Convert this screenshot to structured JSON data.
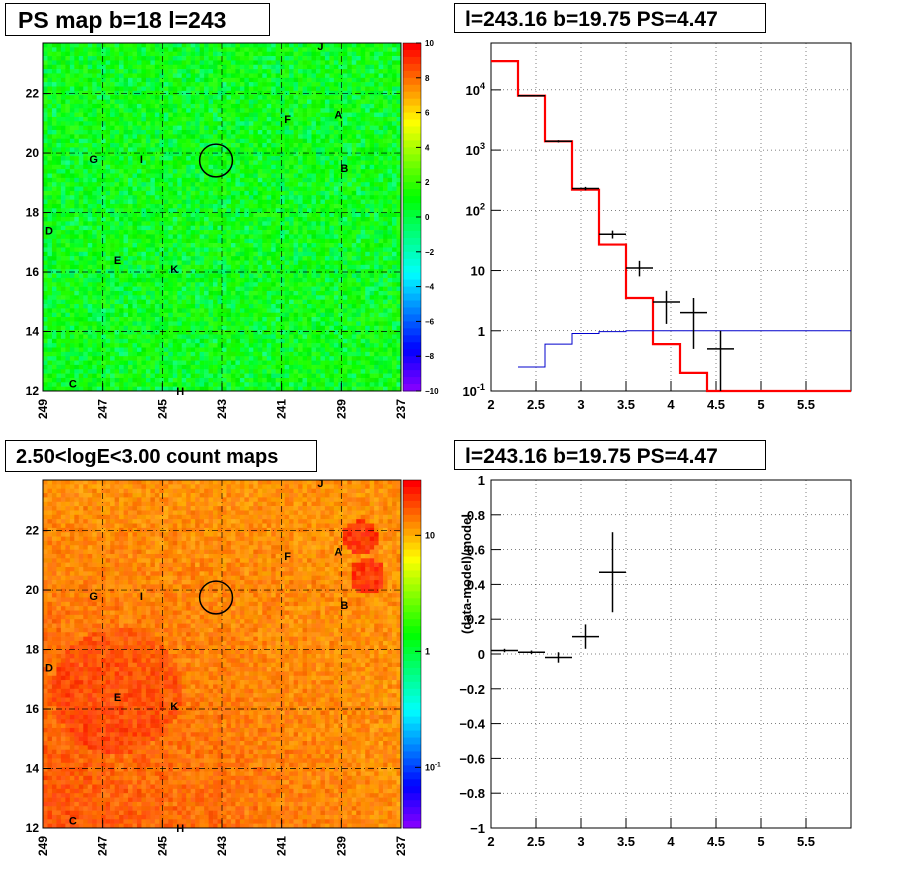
{
  "panels": {
    "ps_map_title": "PS map b=18 l=243",
    "spectrum_title": "l=243.16 b=19.75 PS=4.47",
    "count_map_title": "2.50<logE<3.00 count maps",
    "residual_title": "l=243.16 b=19.75 PS=4.47"
  },
  "colors": {
    "data": "#000000",
    "model_red": "#ff0000",
    "model_blue": "#0000cc",
    "map_green": "#22ff00"
  },
  "chart_data": [
    {
      "type": "heatmap",
      "name": "ps_map",
      "title": "PS map b=18 l=243",
      "x_ticks": [
        "249",
        "247",
        "245",
        "243",
        "241",
        "239",
        "237"
      ],
      "xlim": [
        249,
        237
      ],
      "y_ticks": [
        "12",
        "14",
        "16",
        "18",
        "20",
        "22"
      ],
      "ylim": [
        12,
        23.7
      ],
      "colorbar": {
        "scale": "linear",
        "range": [
          -10,
          10
        ],
        "ticks": [
          "10",
          "8",
          "6",
          "4",
          "2",
          "0",
          "−2",
          "−4",
          "−6",
          "−8",
          "−10"
        ]
      },
      "dominant_value": 0.5,
      "source_labels": [
        {
          "text": "A",
          "l": 239.1,
          "b": 21.3
        },
        {
          "text": "B",
          "l": 238.9,
          "b": 19.5
        },
        {
          "text": "C",
          "l": 248.0,
          "b": 12.25
        },
        {
          "text": "D",
          "l": 248.8,
          "b": 17.4
        },
        {
          "text": "E",
          "l": 246.5,
          "b": 16.4
        },
        {
          "text": "F",
          "l": 240.8,
          "b": 21.15
        },
        {
          "text": "G",
          "l": 247.3,
          "b": 19.8
        },
        {
          "text": "H",
          "l": 244.4,
          "b": 12.0
        },
        {
          "text": "I",
          "l": 245.7,
          "b": 19.8
        },
        {
          "text": "J",
          "l": 239.7,
          "b": 23.6
        },
        {
          "text": "K",
          "l": 244.6,
          "b": 16.1
        }
      ],
      "circle": {
        "l": 243.2,
        "b": 19.75,
        "r": 0.55
      }
    },
    {
      "type": "line",
      "name": "spectrum",
      "title": "l=243.16 b=19.75 PS=4.47",
      "x_ticks": [
        "2",
        "2.5",
        "3",
        "3.5",
        "4",
        "4.5",
        "5",
        "5.5"
      ],
      "xlim": [
        2,
        6
      ],
      "y_scale": "log",
      "ylim": [
        0.1,
        60000
      ],
      "y_ticks": [
        "10^-1",
        "1",
        "10",
        "10^2",
        "10^3",
        "10^4"
      ],
      "grid": true,
      "data_points": [
        {
          "x": 2.45,
          "y": 8000,
          "xerr": 0.15,
          "yerr_lo": 7800,
          "yerr_hi": 8200
        },
        {
          "x": 2.75,
          "y": 1400,
          "xerr": 0.15,
          "yerr_lo": 1340,
          "yerr_hi": 1460
        },
        {
          "x": 3.05,
          "y": 230,
          "xerr": 0.15,
          "yerr_lo": 215,
          "yerr_hi": 245
        },
        {
          "x": 3.35,
          "y": 40,
          "xerr": 0.15,
          "yerr_lo": 34,
          "yerr_hi": 46
        },
        {
          "x": 3.65,
          "y": 11,
          "xerr": 0.15,
          "yerr_lo": 8,
          "yerr_hi": 14.5
        },
        {
          "x": 3.95,
          "y": 3,
          "xerr": 0.15,
          "yerr_lo": 1.3,
          "yerr_hi": 4.6
        },
        {
          "x": 4.25,
          "y": 2,
          "xerr": 0.15,
          "yerr_lo": 0.5,
          "yerr_hi": 3.5
        },
        {
          "x": 4.55,
          "y": 0.5,
          "xerr": 0.15,
          "yerr_lo": 0.1,
          "yerr_hi": 1.0
        }
      ],
      "series": [
        {
          "edges": [
            2,
            2.3,
            2.6,
            2.9,
            3.2,
            3.5,
            3.8,
            4.1,
            4.4,
            6
          ],
          "values": [
            30000,
            8000,
            1400,
            220,
            27,
            3.5,
            0.6,
            0.2,
            0.1
          ]
        },
        {
          "edges": [
            2.3,
            2.6,
            2.9,
            3.2,
            3.5,
            6
          ],
          "values": [
            0.25,
            0.6,
            0.9,
            0.97,
            1.0
          ]
        }
      ]
    },
    {
      "type": "heatmap",
      "name": "count_map",
      "title": "2.50<logE<3.00 count maps",
      "x_ticks": [
        "249",
        "247",
        "245",
        "243",
        "241",
        "239",
        "237"
      ],
      "xlim": [
        249,
        237
      ],
      "y_ticks": [
        "12",
        "14",
        "16",
        "18",
        "20",
        "22"
      ],
      "ylim": [
        12,
        23.7
      ],
      "colorbar": {
        "scale": "log",
        "range": [
          0.03,
          30
        ],
        "ticks": [
          "10",
          "1",
          "10^-1"
        ]
      },
      "source_labels": [
        {
          "text": "A",
          "l": 239.1,
          "b": 21.3
        },
        {
          "text": "B",
          "l": 238.9,
          "b": 19.5
        },
        {
          "text": "C",
          "l": 248.0,
          "b": 12.25
        },
        {
          "text": "D",
          "l": 248.8,
          "b": 17.4
        },
        {
          "text": "E",
          "l": 246.5,
          "b": 16.4
        },
        {
          "text": "F",
          "l": 240.8,
          "b": 21.15
        },
        {
          "text": "G",
          "l": 247.3,
          "b": 19.8
        },
        {
          "text": "H",
          "l": 244.4,
          "b": 12.0
        },
        {
          "text": "I",
          "l": 245.7,
          "b": 19.8
        },
        {
          "text": "J",
          "l": 239.7,
          "b": 23.6
        },
        {
          "text": "K",
          "l": 244.6,
          "b": 16.1
        }
      ],
      "circle": {
        "l": 243.2,
        "b": 19.75,
        "r": 0.55
      }
    },
    {
      "type": "scatter",
      "name": "residual",
      "title": "l=243.16 b=19.75 PS=4.47",
      "ylabel": "(data-model)/model",
      "x_ticks": [
        "2",
        "2.5",
        "3",
        "3.5",
        "4",
        "4.5",
        "5",
        "5.5"
      ],
      "xlim": [
        2,
        6
      ],
      "ylim": [
        -1,
        1
      ],
      "y_ticks": [
        "−1",
        "−0.8",
        "−0.6",
        "−0.4",
        "−0.2",
        "0",
        "0.2",
        "0.4",
        "0.6",
        "0.8",
        "1"
      ],
      "grid": true,
      "points": [
        {
          "x": 2.15,
          "y": 0.02,
          "xerr": 0.15,
          "yerr": 0.01
        },
        {
          "x": 2.45,
          "y": 0.01,
          "xerr": 0.15,
          "yerr": 0.01
        },
        {
          "x": 2.75,
          "y": -0.02,
          "xerr": 0.15,
          "yerr": 0.03
        },
        {
          "x": 3.05,
          "y": 0.1,
          "xerr": 0.15,
          "yerr": 0.07
        },
        {
          "x": 3.35,
          "y": 0.47,
          "xerr": 0.15,
          "yerr": 0.23
        }
      ]
    }
  ]
}
